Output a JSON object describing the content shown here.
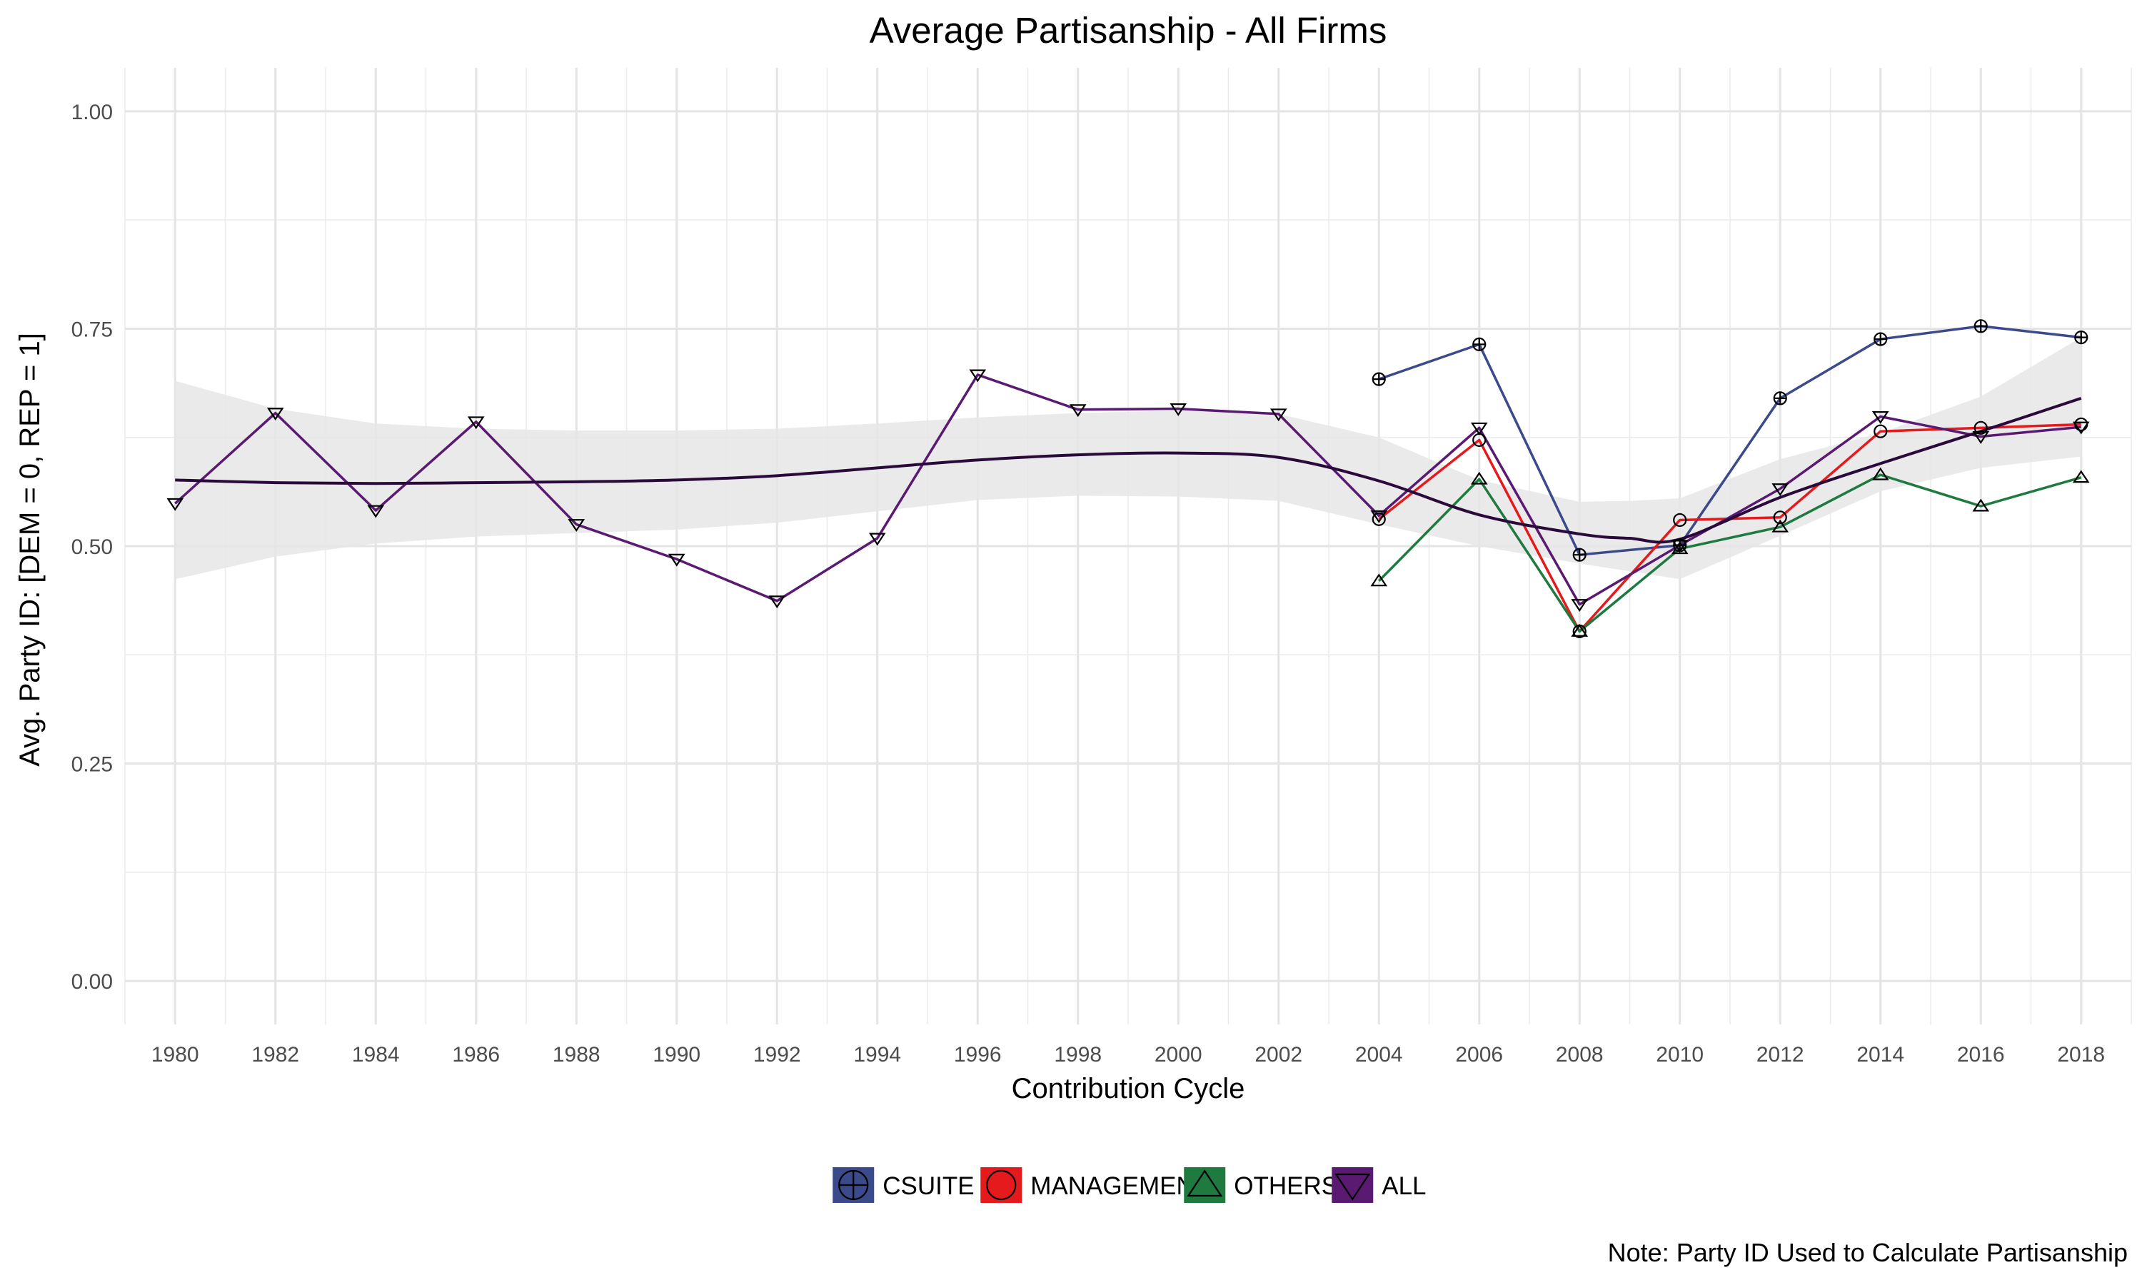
{
  "chart_data": {
    "type": "line",
    "title": "Average Partisanship - All Firms",
    "xlabel": "Contribution Cycle",
    "ylabel": "Avg. Party ID: [DEM = 0, REP = 1]",
    "caption": "Note: Party ID Used to Calculate Partisanship",
    "xlim": [
      1979,
      2019
    ],
    "ylim": [
      -0.05,
      1.05
    ],
    "x_ticks": [
      1980,
      1982,
      1984,
      1986,
      1988,
      1990,
      1992,
      1994,
      1996,
      1998,
      2000,
      2002,
      2004,
      2006,
      2008,
      2010,
      2012,
      2014,
      2016,
      2018
    ],
    "y_ticks": [
      0.0,
      0.25,
      0.5,
      0.75,
      1.0
    ],
    "y_tick_labels": [
      "0.00",
      "0.25",
      "0.50",
      "0.75",
      "1.00"
    ],
    "grid": true,
    "legend_position": "bottom",
    "series": [
      {
        "name": "CSUITE",
        "color": "#3b4a8a",
        "marker": "circle-plus",
        "x": [
          2004,
          2006,
          2008,
          2010,
          2012,
          2014,
          2016,
          2018
        ],
        "values": [
          0.692,
          0.732,
          0.49,
          0.501,
          0.67,
          0.738,
          0.753,
          0.74
        ]
      },
      {
        "name": "MANAGEMENT",
        "color": "#e41a1c",
        "marker": "circle",
        "x": [
          2004,
          2006,
          2008,
          2010,
          2012,
          2014,
          2016,
          2018
        ],
        "values": [
          0.531,
          0.622,
          0.402,
          0.53,
          0.533,
          0.632,
          0.636,
          0.64
        ]
      },
      {
        "name": "OTHERS",
        "color": "#1f7a40",
        "marker": "triangle-up",
        "x": [
          2004,
          2006,
          2008,
          2010,
          2012,
          2014,
          2016,
          2018
        ],
        "values": [
          0.46,
          0.577,
          0.402,
          0.497,
          0.522,
          0.582,
          0.546,
          0.579
        ]
      },
      {
        "name": "ALL",
        "color": "#5a1a72",
        "marker": "triangle-down",
        "x": [
          1980,
          1982,
          1984,
          1986,
          1988,
          1990,
          1992,
          1994,
          1996,
          1998,
          2000,
          2002,
          2004,
          2006,
          2008,
          2010,
          2012,
          2014,
          2016,
          2018
        ],
        "values": [
          0.549,
          0.653,
          0.541,
          0.643,
          0.525,
          0.485,
          0.437,
          0.509,
          0.697,
          0.657,
          0.658,
          0.652,
          0.535,
          0.636,
          0.433,
          0.501,
          0.566,
          0.649,
          0.626,
          0.637
        ]
      }
    ],
    "smooth": {
      "color": "#2a0a3a",
      "band_color": "#e6e6e6",
      "x": [
        1980,
        1982,
        1984,
        1986,
        1988,
        1990,
        1992,
        1994,
        1996,
        1998,
        2000,
        2002,
        2004,
        2006,
        2008,
        2009,
        2010,
        2012,
        2014,
        2016,
        2018
      ],
      "values": [
        0.576,
        0.573,
        0.572,
        0.573,
        0.574,
        0.576,
        0.581,
        0.59,
        0.599,
        0.605,
        0.607,
        0.602,
        0.575,
        0.536,
        0.514,
        0.509,
        0.508,
        0.556,
        0.595,
        0.632,
        0.67
      ],
      "lower": [
        0.462,
        0.488,
        0.503,
        0.511,
        0.515,
        0.519,
        0.527,
        0.54,
        0.553,
        0.558,
        0.557,
        0.552,
        0.525,
        0.5,
        0.48,
        0.471,
        0.462,
        0.512,
        0.563,
        0.59,
        0.603
      ],
      "upper": [
        0.69,
        0.658,
        0.641,
        0.635,
        0.633,
        0.633,
        0.635,
        0.641,
        0.648,
        0.653,
        0.656,
        0.652,
        0.625,
        0.576,
        0.551,
        0.552,
        0.555,
        0.6,
        0.63,
        0.672,
        0.74
      ]
    }
  }
}
